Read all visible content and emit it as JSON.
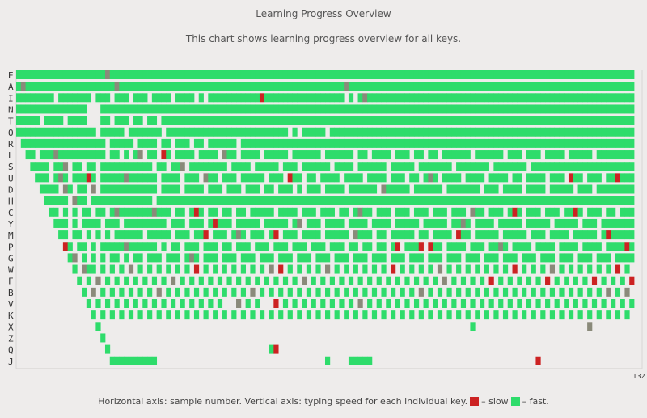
{
  "header": {
    "title": "Learning Progress Overview",
    "subtitle": "This chart shows learning progress overview for all keys."
  },
  "footer": {
    "description": "Horizontal axis: sample number. Vertical axis: typing speed for each individual key.",
    "slow_label": "– slow",
    "fast_label": "– fast.",
    "slow_color": "#cc2222",
    "fast_color": "#2edc6b"
  },
  "chart_data": {
    "type": "heatmap",
    "x_max_label": "132",
    "xlim": [
      0,
      132
    ],
    "colors": {
      "slow": "#cc2222",
      "medium": "#8a8a7a",
      "fast": "#2edc6b",
      "grid": "#d8d6d4"
    },
    "rows": [
      {
        "key": "E",
        "start": 0,
        "gaps": [],
        "slow": [],
        "medium": [
          19
        ]
      },
      {
        "key": "A",
        "start": 0,
        "gaps": [],
        "slow": [],
        "medium": [
          1,
          21,
          70
        ]
      },
      {
        "key": "I",
        "start": 0,
        "gaps": [
          8,
          16,
          20,
          24,
          28,
          33,
          38,
          40,
          70,
          72
        ],
        "slow": [
          52
        ],
        "medium": [
          24,
          74
        ]
      },
      {
        "key": "N",
        "start": 0,
        "gaps": [
          15,
          16,
          17
        ],
        "slow": [],
        "medium": []
      },
      {
        "key": "T",
        "start": 0,
        "gaps": [
          5,
          10,
          15,
          16,
          17,
          20,
          24,
          27,
          30
        ],
        "slow": [],
        "medium": []
      },
      {
        "key": "O",
        "start": 0,
        "gaps": [
          17,
          23,
          31,
          58,
          60,
          66
        ],
        "slow": [],
        "medium": []
      },
      {
        "key": "R",
        "start": 1,
        "gaps": [
          19,
          25,
          30,
          33,
          37,
          40,
          47
        ],
        "slow": [],
        "medium": []
      },
      {
        "key": "L",
        "start": 2,
        "gaps": [
          4,
          19,
          22,
          24,
          27,
          30,
          33,
          38,
          43,
          47,
          52,
          58,
          65,
          72,
          75,
          80,
          84,
          87,
          90,
          97,
          104,
          108,
          112,
          117,
          123
        ],
        "slow": [
          31
        ],
        "medium": [
          8,
          26,
          44
        ]
      },
      {
        "key": "S",
        "start": 3,
        "gaps": [
          7,
          11,
          14,
          17,
          29,
          32,
          36,
          45,
          50,
          56,
          60,
          67,
          72,
          79,
          85,
          93,
          101,
          109
        ],
        "slow": [],
        "medium": [
          10,
          35
        ]
      },
      {
        "key": "U",
        "start": 4,
        "gaps": [
          7,
          11,
          17,
          30,
          35,
          39,
          43,
          47,
          53,
          57,
          61,
          64,
          69,
          74,
          79,
          83,
          86,
          90,
          95,
          100,
          105,
          108,
          113,
          117,
          121,
          125
        ],
        "slow": [
          15,
          58,
          64,
          118,
          128
        ],
        "medium": [
          9,
          23,
          40,
          88
        ]
      },
      {
        "key": "D",
        "start": 5,
        "gaps": [
          9,
          12,
          15,
          17,
          30,
          35,
          40,
          44,
          48,
          52,
          55,
          59,
          61,
          65,
          70,
          77,
          84,
          91,
          99,
          103,
          108,
          113,
          119,
          123
        ],
        "slow": [],
        "medium": [
          10,
          16,
          48,
          78
        ]
      },
      {
        "key": "H",
        "start": 6,
        "gaps": [
          11,
          15,
          29
        ],
        "slow": [],
        "medium": [
          12
        ]
      },
      {
        "key": "C",
        "start": 7,
        "gaps": [
          9,
          11,
          13,
          16,
          19,
          33,
          36,
          40,
          43,
          46,
          49,
          55,
          60,
          64,
          68,
          71,
          76,
          80,
          84,
          88,
          92,
          96,
          100,
          104,
          108,
          112,
          116,
          121,
          125,
          128
        ],
        "slow": [
          38,
          55,
          64,
          106,
          119
        ],
        "medium": [
          21,
          29,
          73,
          97
        ]
      },
      {
        "key": "Y",
        "start": 8,
        "gaps": [
          11,
          13,
          18,
          22,
          32,
          36,
          40,
          46,
          52,
          58,
          61,
          65,
          70,
          75,
          80,
          86,
          92,
          97,
          102,
          108,
          114,
          120,
          124
        ],
        "slow": [
          42
        ],
        "medium": [
          60,
          95
        ]
      },
      {
        "key": "M",
        "start": 9,
        "gaps": [
          11,
          14,
          16,
          18,
          20,
          27,
          33,
          37,
          41,
          45,
          49,
          53,
          56,
          60,
          65,
          71,
          76,
          79,
          85,
          88,
          93,
          97,
          103,
          109,
          113,
          118,
          124
        ],
        "slow": [
          40,
          55,
          94,
          126
        ],
        "medium": [
          33,
          47,
          72
        ]
      },
      {
        "key": "P",
        "start": 10,
        "gaps": [
          12,
          15,
          17,
          30,
          32,
          35,
          39,
          43,
          46,
          50,
          54,
          58,
          62,
          66,
          70,
          73,
          76,
          79,
          82,
          87,
          91,
          96,
          100,
          105,
          110,
          115,
          120,
          125
        ],
        "slow": [
          10,
          81,
          86,
          88,
          130
        ],
        "medium": [
          23,
          50,
          103
        ]
      },
      {
        "key": "G",
        "start": 11,
        "gaps": [
          13,
          15,
          17,
          19,
          22,
          24,
          27,
          31,
          35,
          39,
          43,
          47,
          51,
          55,
          59,
          63,
          67,
          71,
          75,
          79,
          83,
          87,
          91,
          95,
          99,
          103,
          107,
          111,
          115,
          119,
          123,
          127
        ],
        "slow": [
          13,
          15
        ],
        "medium": [
          12,
          37
        ]
      },
      {
        "key": "W",
        "start": 12,
        "gaps": [
          13,
          17,
          19,
          21,
          23,
          25,
          27,
          29,
          31,
          33,
          35,
          37,
          39,
          41,
          43,
          45,
          47,
          49,
          51,
          53,
          55,
          57,
          59,
          61,
          63,
          65,
          67,
          69,
          71,
          73,
          75,
          77,
          79,
          81,
          83,
          85,
          87,
          89,
          91,
          93,
          95,
          97,
          99,
          101,
          103,
          105,
          107,
          109,
          111,
          113,
          115,
          117,
          119,
          121,
          123,
          125,
          127,
          129,
          131
        ],
        "slow": [
          38,
          56,
          80,
          106,
          128,
          132
        ],
        "medium": [
          14,
          24,
          54,
          66,
          90,
          114
        ]
      },
      {
        "key": "F",
        "start": 13,
        "gaps": [
          14,
          16,
          18,
          20,
          22,
          24,
          26,
          28,
          30,
          32,
          34,
          36,
          38,
          40,
          42,
          44,
          46,
          48,
          50,
          52,
          54,
          56,
          58,
          60,
          62,
          64,
          66,
          68,
          70,
          72,
          74,
          76,
          78,
          80,
          82,
          84,
          86,
          88,
          90,
          92,
          94,
          96,
          98,
          100,
          102,
          104,
          106,
          108,
          110,
          112,
          114,
          116,
          118,
          120,
          122,
          124,
          126,
          128,
          130
        ],
        "slow": [
          46,
          76,
          101,
          106,
          113,
          123,
          131
        ],
        "medium": [
          17,
          33,
          61,
          91
        ]
      },
      {
        "key": "B",
        "start": 14,
        "gaps": [
          15,
          17,
          19,
          21,
          23,
          25,
          27,
          29,
          31,
          33,
          35,
          37,
          39,
          41,
          43,
          45,
          47,
          49,
          51,
          53,
          55,
          57,
          59,
          61,
          63,
          65,
          67,
          69,
          71,
          73,
          75,
          77,
          79,
          81,
          83,
          85,
          87,
          89,
          91,
          93,
          95,
          97,
          99,
          101,
          103,
          105,
          107,
          109,
          111,
          113,
          115,
          117,
          119,
          121,
          123,
          125,
          127,
          129,
          131
        ],
        "slow": [],
        "medium": [
          16,
          30,
          50,
          86,
          126,
          130
        ]
      },
      {
        "key": "V",
        "start": 15,
        "gaps": [
          16,
          18,
          20,
          22,
          24,
          26,
          28,
          30,
          32,
          34,
          36,
          38,
          40,
          42,
          44,
          45,
          46,
          48,
          50,
          52,
          53,
          54,
          56,
          58,
          60,
          62,
          64,
          66,
          68,
          70,
          72,
          74,
          76,
          78,
          80,
          82,
          84,
          86,
          88,
          90,
          92,
          94,
          96,
          98,
          100,
          102,
          104,
          106,
          108,
          110,
          112,
          114,
          116,
          118,
          120,
          122,
          124,
          126,
          128,
          130
        ],
        "slow": [
          48,
          55
        ],
        "medium": [
          18,
          47,
          73
        ]
      },
      {
        "key": "K",
        "start": 16,
        "gaps": [
          17,
          19,
          21,
          23,
          25,
          27,
          29,
          31,
          33,
          35,
          37,
          39,
          41,
          43,
          45,
          47,
          49,
          51,
          53,
          55,
          57,
          59,
          61,
          63,
          65,
          67,
          69,
          71,
          73,
          75,
          77,
          79,
          81,
          83,
          85,
          87,
          89,
          91,
          93,
          95,
          97,
          99,
          101,
          103,
          105,
          107,
          109,
          111,
          113,
          115,
          117,
          119,
          121,
          123,
          125,
          127,
          129,
          131
        ],
        "slow": [
          97
        ],
        "medium": []
      },
      {
        "key": "X",
        "start": 17,
        "gaps": [
          18,
          19,
          20,
          21,
          22,
          23,
          24,
          25,
          26,
          27,
          28,
          29,
          30,
          31,
          32,
          33,
          34,
          35,
          36,
          37,
          38,
          39,
          40,
          41,
          42,
          43,
          44,
          45,
          46,
          47,
          48,
          49,
          50,
          51,
          52,
          53,
          54,
          55,
          56,
          57,
          58,
          59,
          60,
          61,
          62,
          63,
          64,
          65,
          66,
          67,
          68,
          69,
          70,
          71,
          72,
          73,
          74,
          75,
          76,
          77,
          78,
          79,
          80,
          81,
          82,
          83,
          84,
          85,
          86,
          87,
          88,
          89,
          90,
          91,
          92,
          93,
          94,
          95,
          96,
          98,
          99,
          100,
          101,
          102,
          103,
          104,
          105,
          106,
          107,
          108,
          109,
          110,
          111,
          112,
          113,
          114,
          115,
          116,
          117,
          118,
          119,
          120,
          121,
          123,
          124,
          125,
          126,
          127,
          128,
          129,
          130,
          131
        ],
        "slow": [],
        "medium": [
          122
        ]
      },
      {
        "key": "Z",
        "start": 18,
        "gaps": [
          19,
          20,
          21,
          22,
          23,
          24,
          25,
          26,
          27,
          28,
          29,
          30,
          31,
          32,
          33,
          34,
          35,
          36,
          37,
          38,
          39,
          40,
          41,
          42,
          43,
          44,
          45,
          46,
          47,
          48,
          49,
          50,
          51,
          52,
          53,
          54,
          55,
          56,
          57,
          58,
          59,
          60,
          61,
          62,
          63,
          64,
          65,
          66,
          67,
          68,
          69,
          70,
          71,
          72,
          73,
          74,
          75,
          76,
          77,
          78,
          79,
          80,
          81,
          82,
          83,
          84,
          85,
          86,
          87,
          88,
          89,
          90,
          91,
          92,
          93,
          94,
          95,
          96,
          97,
          98,
          99,
          100,
          101,
          102,
          103,
          104,
          105,
          106,
          107,
          108,
          109,
          110,
          111,
          112,
          113,
          114,
          115,
          116,
          117,
          118,
          119,
          120,
          121,
          122,
          123,
          124,
          125,
          126,
          127,
          128,
          129,
          130,
          131
        ],
        "slow": [],
        "medium": []
      },
      {
        "key": "Q",
        "start": 19,
        "gaps": [
          20,
          21,
          22,
          23,
          24,
          25,
          26,
          27,
          28,
          29,
          30,
          31,
          32,
          33,
          34,
          35,
          36,
          37,
          38,
          39,
          40,
          41,
          42,
          43,
          44,
          45,
          46,
          47,
          48,
          49,
          50,
          51,
          52,
          53,
          56,
          57,
          58,
          59,
          60,
          61,
          62,
          63,
          64,
          65,
          66,
          67,
          68,
          69,
          70,
          71,
          72,
          73,
          74,
          75,
          76,
          77,
          78,
          79,
          80,
          81,
          82,
          83,
          84,
          85,
          86,
          87,
          88,
          89,
          90,
          91,
          92,
          93,
          94,
          95,
          96,
          97,
          98,
          99,
          100,
          101,
          102,
          103,
          104,
          105,
          106,
          107,
          108,
          109,
          110,
          111,
          112,
          113,
          114,
          115,
          116,
          117,
          118,
          119,
          120,
          121,
          122,
          123,
          124,
          125,
          126,
          127,
          128,
          129,
          130,
          131
        ],
        "slow": [
          55,
          56
        ],
        "medium": []
      },
      {
        "key": "J",
        "start": 20,
        "gaps": [
          30,
          31,
          32,
          33,
          34,
          35,
          36,
          37,
          38,
          39,
          40,
          41,
          42,
          43,
          44,
          45,
          46,
          47,
          48,
          49,
          50,
          51,
          52,
          53,
          54,
          55,
          56,
          57,
          58,
          59,
          60,
          61,
          62,
          63,
          64,
          65,
          67,
          68,
          69,
          70,
          76,
          77,
          78,
          79,
          80,
          81,
          82,
          83,
          84,
          85,
          86,
          87,
          88,
          89,
          90,
          91,
          92,
          93,
          94,
          95,
          96,
          97,
          98,
          99,
          100,
          101,
          102,
          103,
          104,
          105,
          106,
          107,
          108,
          109,
          110,
          112,
          113,
          114,
          115,
          116,
          117,
          118,
          119,
          120,
          121,
          122,
          123,
          124,
          125,
          126,
          127,
          128,
          129,
          130,
          131
        ],
        "slow": [
          63,
          111
        ],
        "medium": []
      }
    ]
  }
}
